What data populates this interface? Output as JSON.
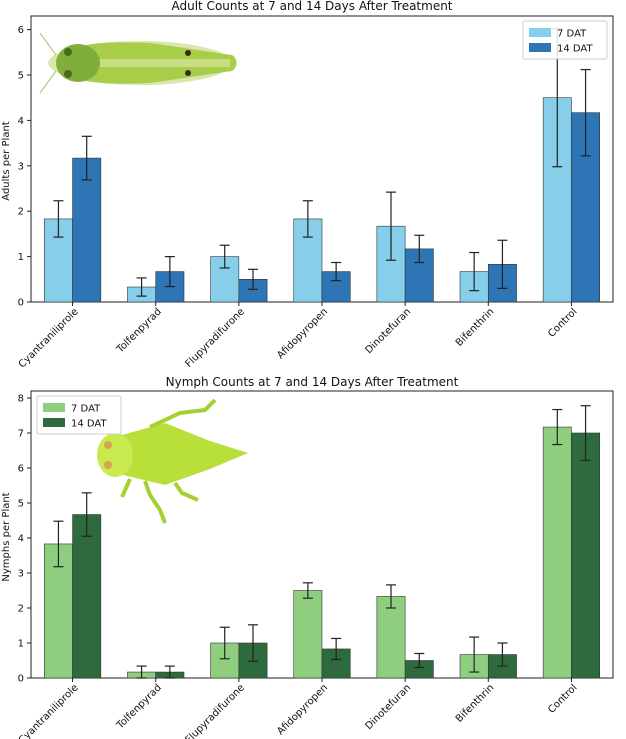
{
  "chart_data": [
    {
      "type": "bar",
      "title": "Adult Counts at 7 and 14 Days After Treatment",
      "xlabel": "",
      "ylabel": "Adults per Plant",
      "ylim": [
        0,
        6.3
      ],
      "yticks": [
        "0",
        "1",
        "2",
        "3",
        "4",
        "5",
        "6"
      ],
      "categories": [
        "Cyantraniliprole",
        "Tolfenpyrad",
        "Flupyradifurone",
        "Afidopyropen",
        "Dinotefuran",
        "Bifenthrin",
        "Control"
      ],
      "series": [
        {
          "name": "7 DAT",
          "color": "#87ceeb",
          "values": [
            1.83,
            0.33,
            1.0,
            1.83,
            1.67,
            0.67,
            4.5
          ],
          "errors": [
            0.4,
            0.2,
            0.25,
            0.4,
            0.75,
            0.42,
            1.52
          ]
        },
        {
          "name": "14 DAT",
          "color": "#2e75b6",
          "values": [
            3.17,
            0.67,
            0.5,
            0.67,
            1.17,
            0.83,
            4.17
          ],
          "errors": [
            0.48,
            0.33,
            0.22,
            0.2,
            0.3,
            0.53,
            0.95
          ]
        }
      ],
      "legend": "top-right",
      "image": "leafhopper-adult"
    },
    {
      "type": "bar",
      "title": "Nymph Counts at 7 and 14 Days After Treatment",
      "xlabel": "",
      "ylabel": "Nymphs per Plant",
      "ylim": [
        0,
        8.2
      ],
      "yticks": [
        "0",
        "1",
        "2",
        "3",
        "4",
        "5",
        "6",
        "7",
        "8"
      ],
      "categories": [
        "Cyantraniliprole",
        "Tolfenpyrad",
        "Flupyradifurone",
        "Afidopyropen",
        "Dinotefuran",
        "Bifenthrin",
        "Control"
      ],
      "series": [
        {
          "name": "7 DAT",
          "color": "#8fce7f",
          "values": [
            3.83,
            0.17,
            1.0,
            2.5,
            2.33,
            0.67,
            7.17
          ],
          "errors": [
            0.65,
            0.17,
            0.45,
            0.22,
            0.33,
            0.5,
            0.5
          ]
        },
        {
          "name": "14 DAT",
          "color": "#2d6a3e",
          "values": [
            4.67,
            0.17,
            1.0,
            0.83,
            0.5,
            0.67,
            7.0
          ],
          "errors": [
            0.62,
            0.17,
            0.52,
            0.3,
            0.2,
            0.33,
            0.78
          ]
        }
      ],
      "legend": "top-left",
      "image": "leafhopper-nymph"
    }
  ]
}
